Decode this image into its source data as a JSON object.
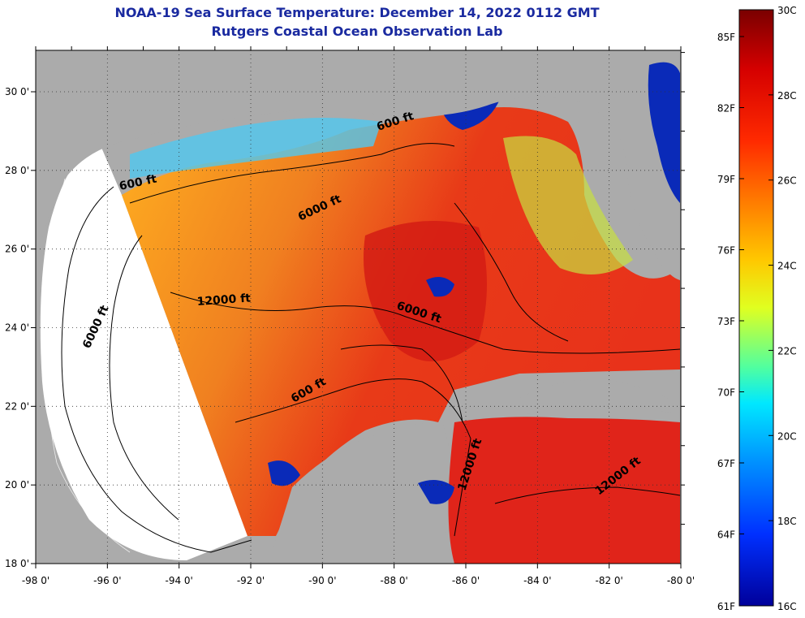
{
  "title": {
    "line1": "NOAA-19 Sea Surface Temperature:  December 14, 2022 0112 GMT",
    "line2": "Rutgers Coastal Ocean Observation Lab"
  },
  "map": {
    "lon_ticks": [
      "-98 0'",
      "-96 0'",
      "-94 0'",
      "-92 0'",
      "-90 0'",
      "-88 0'",
      "-86 0'",
      "-84 0'",
      "-82 0'",
      "-80 0'"
    ],
    "lat_ticks": [
      "30 0'",
      "28 0'",
      "26 0'",
      "24 0'",
      "22 0'",
      "20 0'",
      "18 0'"
    ],
    "contour_labels": [
      "600 ft",
      "600 ft",
      "6000 ft",
      "12000 ft",
      "6000 ft",
      "6000 ft",
      "600 ft",
      "12000 ft",
      "12000 ft"
    ],
    "colors": {
      "land": "#ababab",
      "cloud": "#ffffff",
      "warm": "#e8321a",
      "hot": "#c80f0f",
      "mid": "#f08a1e",
      "cool": "#f5e21f",
      "cold": "#0a2ab8"
    }
  },
  "colorbar": {
    "celsius_labels": [
      "30C",
      "28C",
      "26C",
      "24C",
      "22C",
      "20C",
      "18C",
      "16C"
    ],
    "fahrenheit_labels": [
      "85F",
      "82F",
      "79F",
      "76F",
      "73F",
      "70F",
      "67F",
      "64F",
      "61F"
    ],
    "stops": [
      "#7a0000",
      "#d50000",
      "#ff3000",
      "#ff8000",
      "#ffd000",
      "#d8ff20",
      "#50ff90",
      "#00e8ff",
      "#0090ff",
      "#0030ff",
      "#0000a0"
    ]
  }
}
